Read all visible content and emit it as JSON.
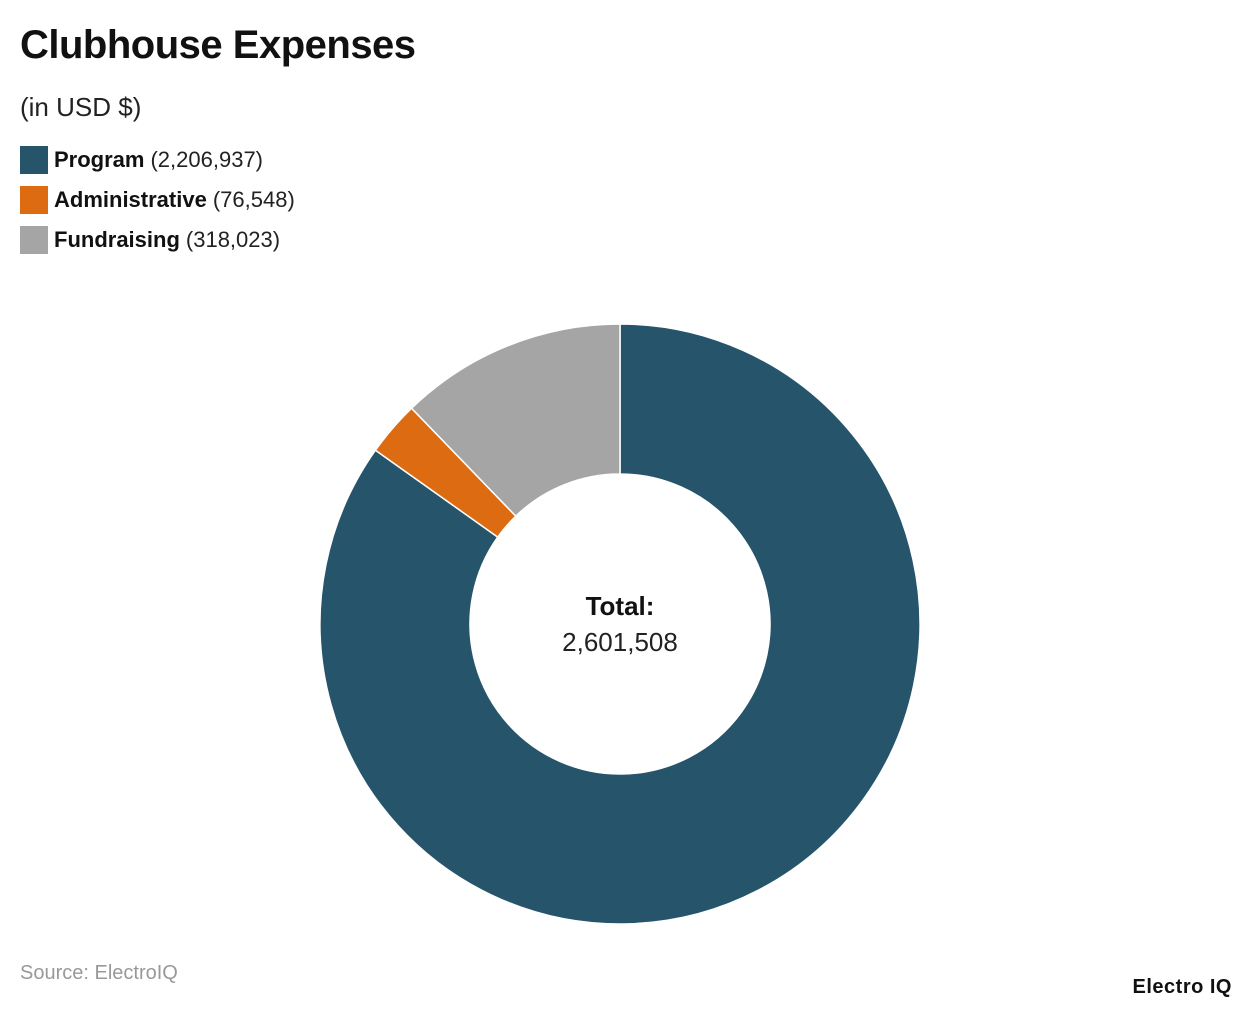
{
  "title": "Clubhouse Expenses",
  "subtitle": "(in USD $)",
  "legend": {
    "items": [
      {
        "name": "Program",
        "value": "(2,206,937)",
        "color": "#25546b"
      },
      {
        "name": "Administrative",
        "value": "(76,548)",
        "color": "#dc6b12"
      },
      {
        "name": "Fundraising",
        "value": "(318,023)",
        "color": "#a5a5a5"
      }
    ]
  },
  "center": {
    "label": "Total:",
    "value": "2,601,508"
  },
  "source": "Source: ElectroIQ",
  "brand": "Electro IQ",
  "chart_data": {
    "type": "pie",
    "title": "Clubhouse Expenses",
    "subtitle": "(in USD $)",
    "categories": [
      "Program",
      "Administrative",
      "Fundraising"
    ],
    "values": [
      2206937,
      76548,
      318023
    ],
    "colors": [
      "#25546b",
      "#dc6b12",
      "#a5a5a5"
    ],
    "donut": true,
    "legend_position": "top-left",
    "total": 2601508
  }
}
